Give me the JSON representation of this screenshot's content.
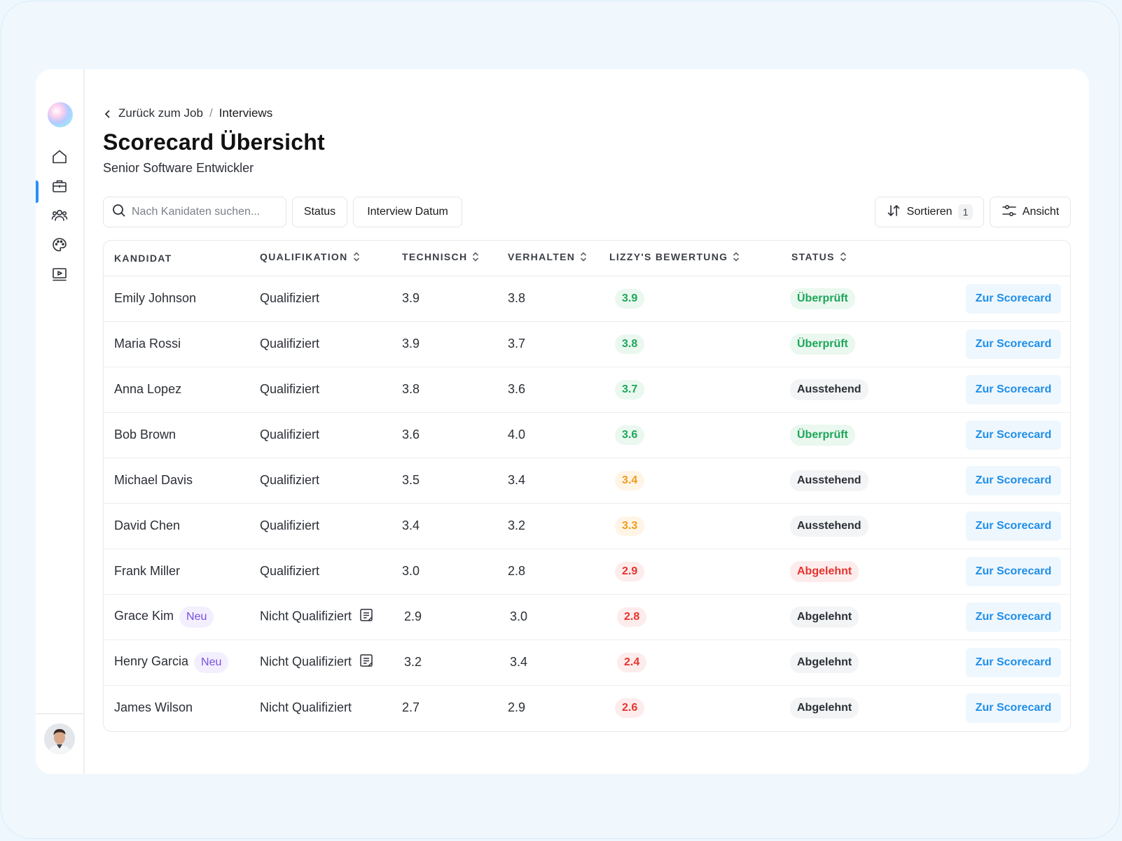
{
  "breadcrumb": {
    "back_label": "Zurück zum Job",
    "separator": "/",
    "current": "Interviews"
  },
  "page": {
    "title": "Scorecard Übersicht",
    "subtitle": "Senior Software Entwickler"
  },
  "toolbar": {
    "search_placeholder": "Nach Kanidaten suchen...",
    "status_filter": "Status",
    "date_filter": "Interview Datum",
    "sort_label": "Sortieren",
    "sort_count": "1",
    "view_label": "Ansicht"
  },
  "sidebar": {
    "items": [
      {
        "name": "home",
        "icon": "home-icon"
      },
      {
        "name": "jobs",
        "icon": "briefcase-icon",
        "active": true
      },
      {
        "name": "candidates",
        "icon": "users-icon"
      },
      {
        "name": "design",
        "icon": "palette-icon"
      },
      {
        "name": "videos",
        "icon": "video-icon"
      }
    ]
  },
  "table": {
    "columns": [
      "Kandidat",
      "Qualifikation",
      "Technisch",
      "Verhalten",
      "Lizzy's Bewertung",
      "Status"
    ],
    "action_label": "Zur Scorecard",
    "new_label": "Neu",
    "rows": [
      {
        "name": "Emily Johnson",
        "qualification": "Qualifiziert",
        "technical": "3.9",
        "behavior": "3.8",
        "rating": "3.9",
        "rating_level": "green",
        "status": "Überprüft",
        "status_level": "green"
      },
      {
        "name": "Maria Rossi",
        "qualification": "Qualifiziert",
        "technical": "3.9",
        "behavior": "3.7",
        "rating": "3.8",
        "rating_level": "green",
        "status": "Überprüft",
        "status_level": "green"
      },
      {
        "name": "Anna Lopez",
        "qualification": "Qualifiziert",
        "technical": "3.8",
        "behavior": "3.6",
        "rating": "3.7",
        "rating_level": "green",
        "status": "Ausstehend",
        "status_level": "gray"
      },
      {
        "name": "Bob Brown",
        "qualification": "Qualifiziert",
        "technical": "3.6",
        "behavior": "4.0",
        "rating": "3.6",
        "rating_level": "green",
        "status": "Überprüft",
        "status_level": "green"
      },
      {
        "name": "Michael Davis",
        "qualification": "Qualifiziert",
        "technical": "3.5",
        "behavior": "3.4",
        "rating": "3.4",
        "rating_level": "orange",
        "status": "Ausstehend",
        "status_level": "gray"
      },
      {
        "name": "David Chen",
        "qualification": "Qualifiziert",
        "technical": "3.4",
        "behavior": "3.2",
        "rating": "3.3",
        "rating_level": "orange",
        "status": "Ausstehend",
        "status_level": "gray"
      },
      {
        "name": "Frank Miller",
        "qualification": "Qualifiziert",
        "technical": "3.0",
        "behavior": "2.8",
        "rating": "2.9",
        "rating_level": "red",
        "status": "Abgelehnt",
        "status_level": "red"
      },
      {
        "name": "Grace Kim",
        "is_new": true,
        "qualification": "Nicht Qualifiziert",
        "has_note": true,
        "technical": "2.9",
        "behavior": "3.0",
        "rating": "2.8",
        "rating_level": "red",
        "status": "Abgelehnt",
        "status_level": "gray"
      },
      {
        "name": "Henry Garcia",
        "is_new": true,
        "qualification": "Nicht Qualifiziert",
        "has_note": true,
        "technical": "3.2",
        "behavior": "3.4",
        "rating": "2.4",
        "rating_level": "red",
        "status": "Abgelehnt",
        "status_level": "gray"
      },
      {
        "name": "James Wilson",
        "qualification": "Nicht Qualifiziert",
        "technical": "2.7",
        "behavior": "2.9",
        "rating": "2.6",
        "rating_level": "red",
        "status": "Abgelehnt",
        "status_level": "gray"
      }
    ]
  },
  "colors": {
    "accent": "#2b8ff5",
    "green": "#1ea65a",
    "orange": "#f29a1a",
    "red": "#e5332e",
    "purple": "#7a4fe0"
  }
}
